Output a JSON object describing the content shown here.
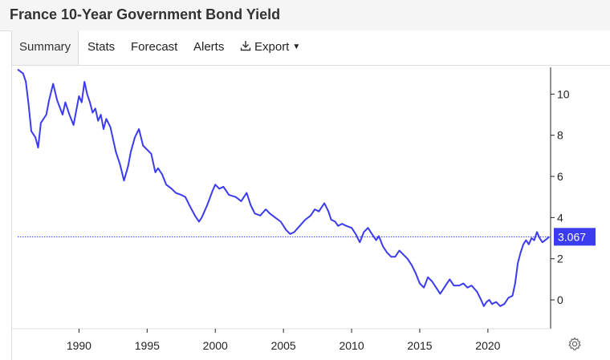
{
  "header": {
    "title": "France 10-Year Government Bond Yield"
  },
  "tabs": [
    {
      "label": "Summary",
      "active": true
    },
    {
      "label": "Stats"
    },
    {
      "label": "Forecast"
    },
    {
      "label": "Alerts"
    },
    {
      "label": "Export"
    }
  ],
  "icons": {
    "export": "download-icon",
    "settings": "gear-icon"
  },
  "colors": {
    "line": "#3b3bf0",
    "badge": "#3b3bf0",
    "last_value_line": "#3b3bf0"
  },
  "chart_data": {
    "type": "line",
    "title": "",
    "xlabel": "",
    "ylabel": "",
    "x_ticks": [
      "1990",
      "1995",
      "2000",
      "2005",
      "2010",
      "2015",
      "2020"
    ],
    "y_ticks": [
      "10",
      "8",
      "6",
      "4",
      "2",
      "0"
    ],
    "xlim": [
      1985.5,
      2024.6
    ],
    "ylim": [
      -1.4,
      11.3
    ],
    "y_axis_position": "right",
    "grid": false,
    "last_value": "3.067",
    "series": [
      {
        "x": [
          1985.5,
          1985.9,
          1986.1,
          1986.3,
          1986.5,
          1986.8,
          1987.0,
          1987.2,
          1987.6,
          1987.8,
          1988.1,
          1988.4,
          1988.8,
          1989.0,
          1989.3,
          1989.6,
          1989.8,
          1990.0,
          1990.2,
          1990.4,
          1990.6,
          1990.8,
          1991.0,
          1991.2,
          1991.4,
          1991.6,
          1991.8,
          1992.0,
          1992.3,
          1992.5,
          1992.7,
          1993.0,
          1993.3,
          1993.6,
          1993.8,
          1994.1,
          1994.4,
          1994.7,
          1995.0,
          1995.3,
          1995.6,
          1995.8,
          1996.1,
          1996.4,
          1996.8,
          1997.1,
          1997.5,
          1997.8,
          1998.1,
          1998.5,
          1998.8,
          1999.0,
          1999.4,
          1999.8,
          2000.0,
          2000.3,
          2000.6,
          2001.0,
          2001.5,
          2001.9,
          2002.3,
          2002.6,
          2002.9,
          2003.3,
          2003.7,
          2004.0,
          2004.4,
          2004.8,
          2005.2,
          2005.5,
          2005.8,
          2006.2,
          2006.6,
          2007.0,
          2007.3,
          2007.6,
          2008.0,
          2008.3,
          2008.5,
          2008.8,
          2009.0,
          2009.3,
          2009.6,
          2010.0,
          2010.3,
          2010.6,
          2010.9,
          2011.2,
          2011.5,
          2011.8,
          2012.0,
          2012.3,
          2012.6,
          2012.9,
          2013.2,
          2013.5,
          2013.8,
          2014.1,
          2014.4,
          2014.7,
          2015.0,
          2015.3,
          2015.6,
          2015.9,
          2016.2,
          2016.5,
          2016.9,
          2017.2,
          2017.5,
          2017.9,
          2018.2,
          2018.5,
          2018.8,
          2019.2,
          2019.5,
          2019.7,
          2019.9,
          2020.1,
          2020.3,
          2020.6,
          2020.9,
          2021.2,
          2021.5,
          2021.8,
          2022.0,
          2022.2,
          2022.4,
          2022.6,
          2022.8,
          2023.0,
          2023.2,
          2023.4,
          2023.6,
          2023.8,
          2024.0,
          2024.2,
          2024.5
        ],
        "values": [
          11.2,
          11.0,
          10.6,
          9.5,
          8.2,
          7.9,
          7.4,
          8.6,
          9.0,
          9.7,
          10.5,
          9.7,
          9.0,
          9.6,
          9.0,
          8.5,
          9.2,
          9.9,
          9.6,
          10.6,
          10.0,
          9.6,
          9.1,
          9.3,
          8.7,
          9.0,
          8.3,
          8.8,
          8.4,
          7.8,
          7.2,
          6.6,
          5.8,
          6.5,
          7.2,
          7.9,
          8.3,
          7.5,
          7.3,
          7.1,
          6.2,
          6.4,
          6.1,
          5.6,
          5.4,
          5.2,
          5.1,
          5.0,
          4.6,
          4.1,
          3.8,
          4.0,
          4.6,
          5.3,
          5.6,
          5.4,
          5.5,
          5.1,
          5.0,
          4.8,
          5.2,
          4.6,
          4.2,
          4.1,
          4.4,
          4.2,
          4.0,
          3.8,
          3.4,
          3.2,
          3.3,
          3.6,
          3.9,
          4.1,
          4.4,
          4.3,
          4.7,
          4.3,
          3.9,
          3.8,
          3.6,
          3.7,
          3.6,
          3.5,
          3.2,
          2.8,
          3.3,
          3.5,
          3.2,
          2.9,
          3.1,
          2.6,
          2.3,
          2.1,
          2.1,
          2.4,
          2.2,
          2.0,
          1.7,
          1.3,
          0.8,
          0.6,
          1.1,
          0.9,
          0.6,
          0.3,
          0.7,
          1.0,
          0.7,
          0.7,
          0.8,
          0.6,
          0.7,
          0.4,
          0.0,
          -0.3,
          -0.1,
          0.0,
          -0.2,
          -0.1,
          -0.3,
          -0.2,
          0.1,
          0.2,
          0.8,
          1.8,
          2.3,
          2.7,
          2.9,
          2.7,
          3.0,
          2.9,
          3.3,
          3.0,
          2.8,
          2.9,
          3.067
        ]
      }
    ]
  }
}
